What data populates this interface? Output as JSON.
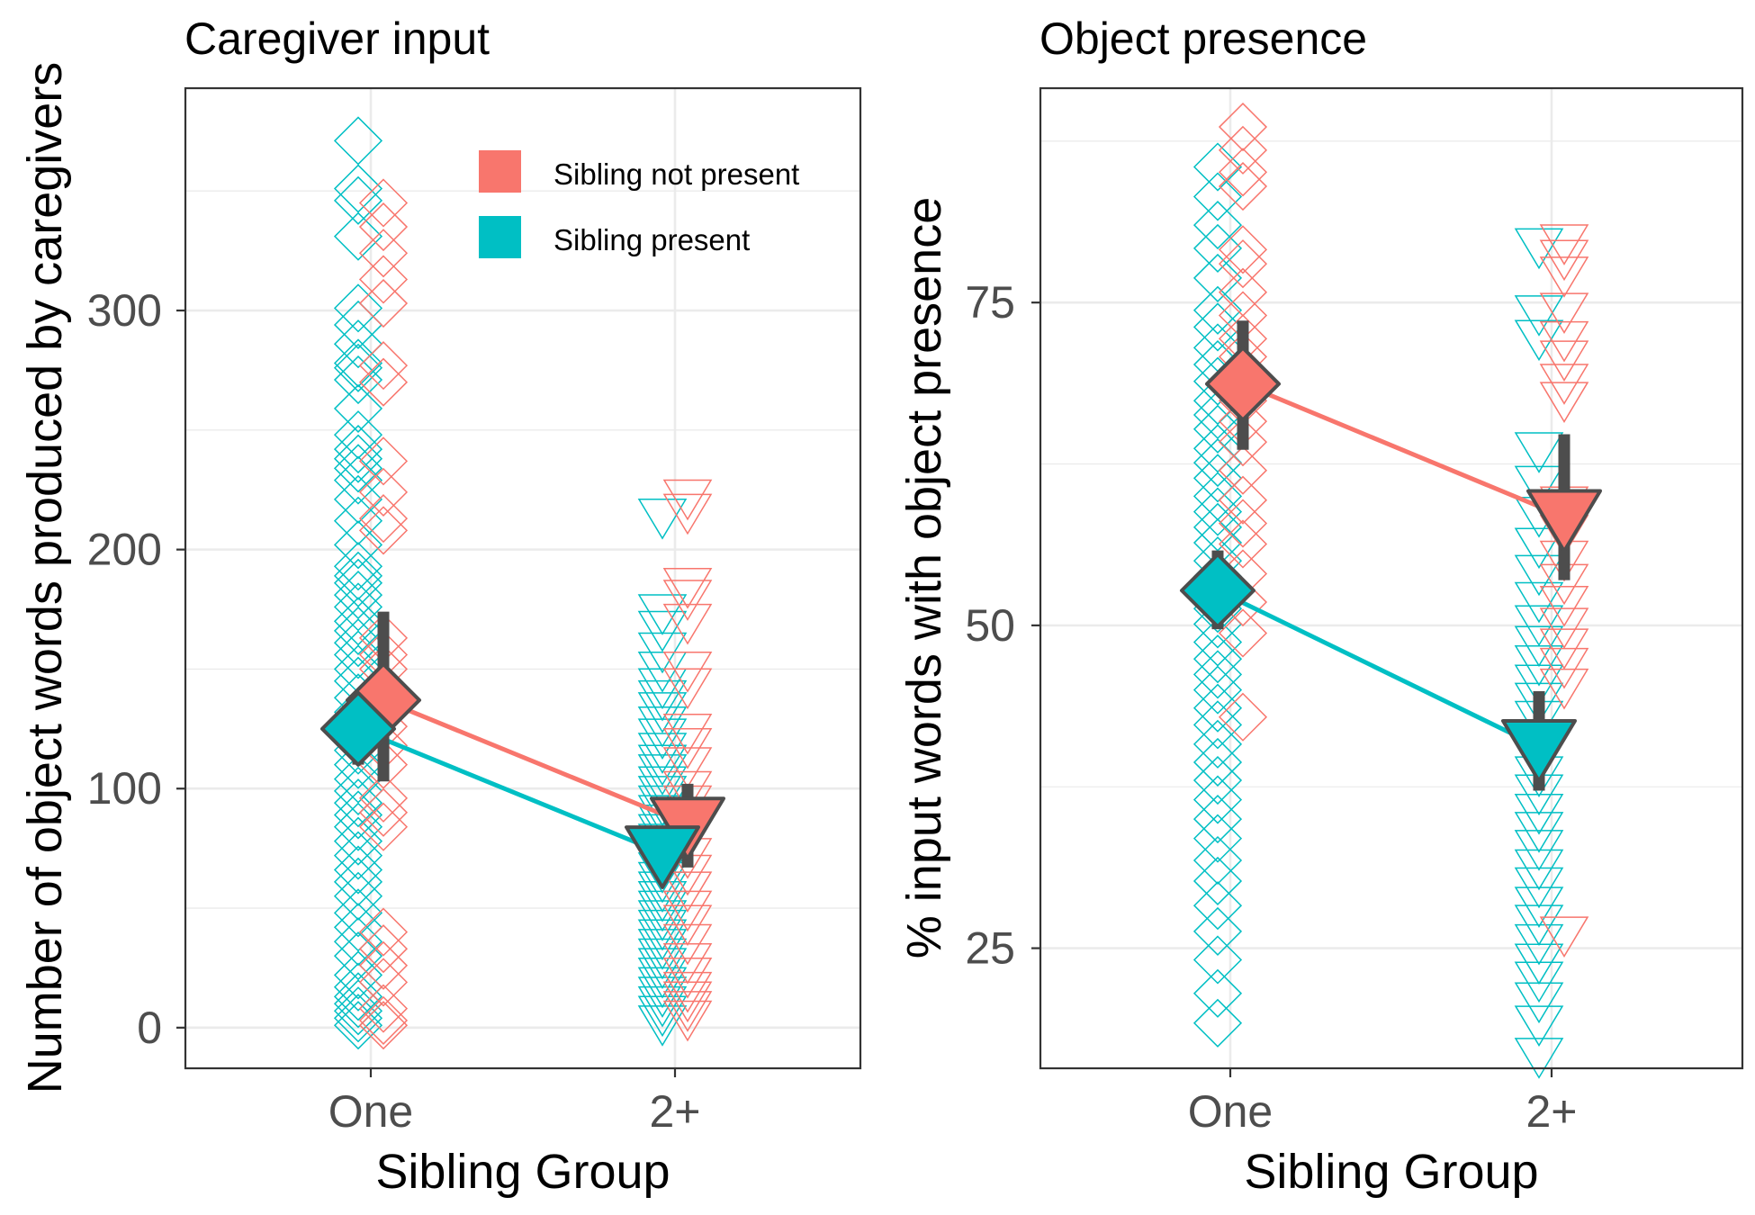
{
  "colors": {
    "sibling_not_present": "#F8766D",
    "sibling_present": "#00BFC4",
    "error_bar": "#4D4D4D",
    "grid": "#EBEBEB",
    "panel_border": "#333333"
  },
  "legend": {
    "items": [
      {
        "label": "Sibling not present",
        "color": "#F8766D"
      },
      {
        "label": "Sibling present",
        "color": "#00BFC4"
      }
    ]
  },
  "chart_data": [
    {
      "type": "scatter",
      "title": "Caregiver input",
      "xlabel": "Sibling Group",
      "ylabel": "Number of object words produced by caregivers",
      "categories": [
        "One",
        "2+"
      ],
      "ylim": [
        -17,
        393
      ],
      "yticks": [
        0,
        100,
        200,
        300
      ],
      "grid": true,
      "legend_position": "top-right",
      "shapes": {
        "One": "diamond",
        "2+": "triangle-down"
      },
      "summary": [
        {
          "series": "Sibling not present",
          "points": [
            {
              "x": "One",
              "y": 137,
              "ylo": 103,
              "yhi": 174
            },
            {
              "x": "2+",
              "y": 85,
              "ylo": 67,
              "yhi": 102
            }
          ]
        },
        {
          "series": "Sibling present",
          "points": [
            {
              "x": "One",
              "y": 125,
              "ylo": 110,
              "yhi": 140
            },
            {
              "x": "2+",
              "y": 73,
              "ylo": 62,
              "yhi": 84
            }
          ]
        }
      ],
      "raw": [
        {
          "series": "Sibling present",
          "group": "One",
          "values": [
            371,
            351,
            346,
            331,
            301,
            294,
            286,
            278,
            276,
            271,
            259,
            248,
            242,
            238,
            234,
            229,
            221,
            212,
            202,
            193,
            189,
            186,
            181,
            176,
            170,
            166,
            161,
            156,
            150,
            145,
            138,
            132,
            128,
            121,
            116,
            110,
            104,
            99,
            94,
            89,
            84,
            78,
            72,
            66,
            61,
            55,
            48,
            42,
            36,
            30,
            22,
            17,
            13,
            10,
            7,
            4,
            1
          ]
        },
        {
          "series": "Sibling not present",
          "group": "One",
          "values": [
            345,
            335,
            324,
            313,
            303,
            277,
            270,
            237,
            224,
            213,
            208,
            163,
            156,
            150,
            142,
            126,
            118,
            110,
            96,
            90,
            84,
            40,
            33,
            26,
            19,
            8,
            3,
            1
          ]
        },
        {
          "series": "Sibling present",
          "group": "2+",
          "values": [
            214,
            174,
            167,
            158,
            150,
            143,
            138,
            133,
            127,
            122,
            116,
            111,
            107,
            102,
            98,
            94,
            90,
            86,
            82,
            78,
            74,
            70,
            66,
            62,
            58,
            54,
            50,
            46,
            42,
            38,
            34,
            30,
            26,
            22,
            18,
            14,
            10,
            6,
            2
          ]
        },
        {
          "series": "Sibling not present",
          "group": "2+",
          "values": [
            222,
            216,
            185,
            180,
            170,
            150,
            143,
            124,
            118,
            110,
            100,
            94,
            88,
            80,
            72,
            65,
            58,
            50,
            44,
            36,
            28,
            22,
            16,
            12,
            8,
            4
          ]
        }
      ]
    },
    {
      "type": "scatter",
      "title": "Object presence",
      "xlabel": "Sibling Group",
      "ylabel": "% input words with object presence",
      "categories": [
        "One",
        "2+"
      ],
      "ylim": [
        15.7,
        91.6
      ],
      "yticks": [
        25,
        50,
        75
      ],
      "grid": true,
      "shapes": {
        "One": "diamond",
        "2+": "triangle-down"
      },
      "summary": [
        {
          "series": "Sibling not present",
          "points": [
            {
              "x": "One",
              "y": 68.7,
              "ylo": 63.6,
              "yhi": 73.6
            },
            {
              "x": "2+",
              "y": 58.4,
              "ylo": 53.5,
              "yhi": 64.8
            }
          ]
        },
        {
          "series": "Sibling present",
          "points": [
            {
              "x": "One",
              "y": 52.7,
              "ylo": 49.7,
              "yhi": 55.8
            },
            {
              "x": "2+",
              "y": 40.6,
              "ylo": 37.2,
              "yhi": 44.9
            }
          ]
        }
      ],
      "raw": [
        {
          "series": "Sibling present",
          "group": "One",
          "values": [
            85.5,
            83.2,
            81.0,
            79.2,
            76.9,
            74.4,
            73.1,
            71.5,
            70.2,
            68.9,
            67.4,
            66.3,
            65.2,
            63.7,
            62.6,
            61.4,
            60.0,
            58.8,
            57.6,
            56.4,
            55.0,
            53.8,
            52.5,
            51.3,
            50.1,
            48.7,
            47.4,
            46.2,
            45.0,
            43.6,
            42.3,
            40.8,
            39.4,
            38.0,
            36.5,
            35.0,
            33.5,
            31.8,
            30.2,
            28.3,
            26.3,
            24.1,
            21.5,
            19.2
          ]
        },
        {
          "series": "Sibling not present",
          "group": "One",
          "values": [
            88.6,
            86.8,
            85.1,
            84.0,
            79.1,
            78.0,
            75.8,
            74.0,
            72.2,
            70.8,
            69.1,
            67.4,
            65.8,
            64.2,
            62.0,
            59.7,
            57.9,
            56.3,
            54.0,
            51.8,
            49.4,
            42.9
          ]
        },
        {
          "series": "Sibling present",
          "group": "2+",
          "values": [
            79.4,
            74.2,
            72.3,
            63.6,
            61.0,
            58.6,
            56.2,
            54.1,
            52.0,
            50.2,
            48.6,
            47.1,
            45.6,
            44.2,
            42.8,
            41.3,
            39.9,
            38.5,
            37.1,
            35.6,
            34.2,
            32.8,
            31.3,
            29.9,
            28.4,
            27.0,
            25.5,
            24.0,
            22.6,
            21.0,
            19.2,
            16.7
          ]
        },
        {
          "series": "Sibling not present",
          "group": "2+",
          "values": [
            79.7,
            78.5,
            77.2,
            74.4,
            72.2,
            70.7,
            68.9,
            67.5,
            59.4,
            57.2,
            55.2,
            53.4,
            51.7,
            50.0,
            48.4,
            46.9,
            45.3,
            26.1
          ]
        }
      ]
    }
  ]
}
